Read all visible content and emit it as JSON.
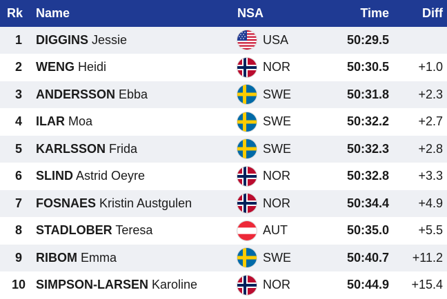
{
  "header": {
    "rank": "Rk",
    "name": "Name",
    "nsa": "NSA",
    "time": "Time",
    "diff": "Diff"
  },
  "rows": [
    {
      "rank": "1",
      "surname": "DIGGINS",
      "given": "Jessie",
      "nsa": "USA",
      "flag": "usa-flag-icon",
      "time": "50:29.5",
      "diff": ""
    },
    {
      "rank": "2",
      "surname": "WENG",
      "given": "Heidi",
      "nsa": "NOR",
      "flag": "norway-flag-icon",
      "time": "50:30.5",
      "diff": "+1.0"
    },
    {
      "rank": "3",
      "surname": "ANDERSSON",
      "given": "Ebba",
      "nsa": "SWE",
      "flag": "sweden-flag-icon",
      "time": "50:31.8",
      "diff": "+2.3"
    },
    {
      "rank": "4",
      "surname": "ILAR",
      "given": "Moa",
      "nsa": "SWE",
      "flag": "sweden-flag-icon",
      "time": "50:32.2",
      "diff": "+2.7"
    },
    {
      "rank": "5",
      "surname": "KARLSSON",
      "given": "Frida",
      "nsa": "SWE",
      "flag": "sweden-flag-icon",
      "time": "50:32.3",
      "diff": "+2.8"
    },
    {
      "rank": "6",
      "surname": "SLIND",
      "given": "Astrid Oeyre",
      "nsa": "NOR",
      "flag": "norway-flag-icon",
      "time": "50:32.8",
      "diff": "+3.3"
    },
    {
      "rank": "7",
      "surname": "FOSNAES",
      "given": "Kristin Austgulen",
      "nsa": "NOR",
      "flag": "norway-flag-icon",
      "time": "50:34.4",
      "diff": "+4.9"
    },
    {
      "rank": "8",
      "surname": "STADLOBER",
      "given": "Teresa",
      "nsa": "AUT",
      "flag": "austria-flag-icon",
      "time": "50:35.0",
      "diff": "+5.5"
    },
    {
      "rank": "9",
      "surname": "RIBOM",
      "given": "Emma",
      "nsa": "SWE",
      "flag": "sweden-flag-icon",
      "time": "50:40.7",
      "diff": "+11.2"
    },
    {
      "rank": "10",
      "surname": "SIMPSON-LARSEN",
      "given": "Karoline",
      "nsa": "NOR",
      "flag": "norway-flag-icon",
      "time": "50:44.9",
      "diff": "+15.4"
    }
  ],
  "colors": {
    "header_bg": "#1f3a93",
    "alt_row_bg": "#eef0f4"
  }
}
